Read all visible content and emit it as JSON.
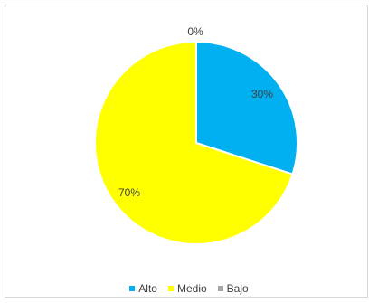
{
  "chart_data": {
    "type": "pie",
    "slices": [
      {
        "name": "Alto",
        "value": 30,
        "label": "30%",
        "color": "#00b0f0"
      },
      {
        "name": "Medio",
        "value": 70,
        "label": "70%",
        "color": "#ffff00"
      },
      {
        "name": "Bajo",
        "value": 0,
        "label": "0%",
        "color": "#a6a6a6"
      }
    ],
    "legend_position": "bottom",
    "legend": [
      "Alto",
      "Medio",
      "Bajo"
    ]
  }
}
